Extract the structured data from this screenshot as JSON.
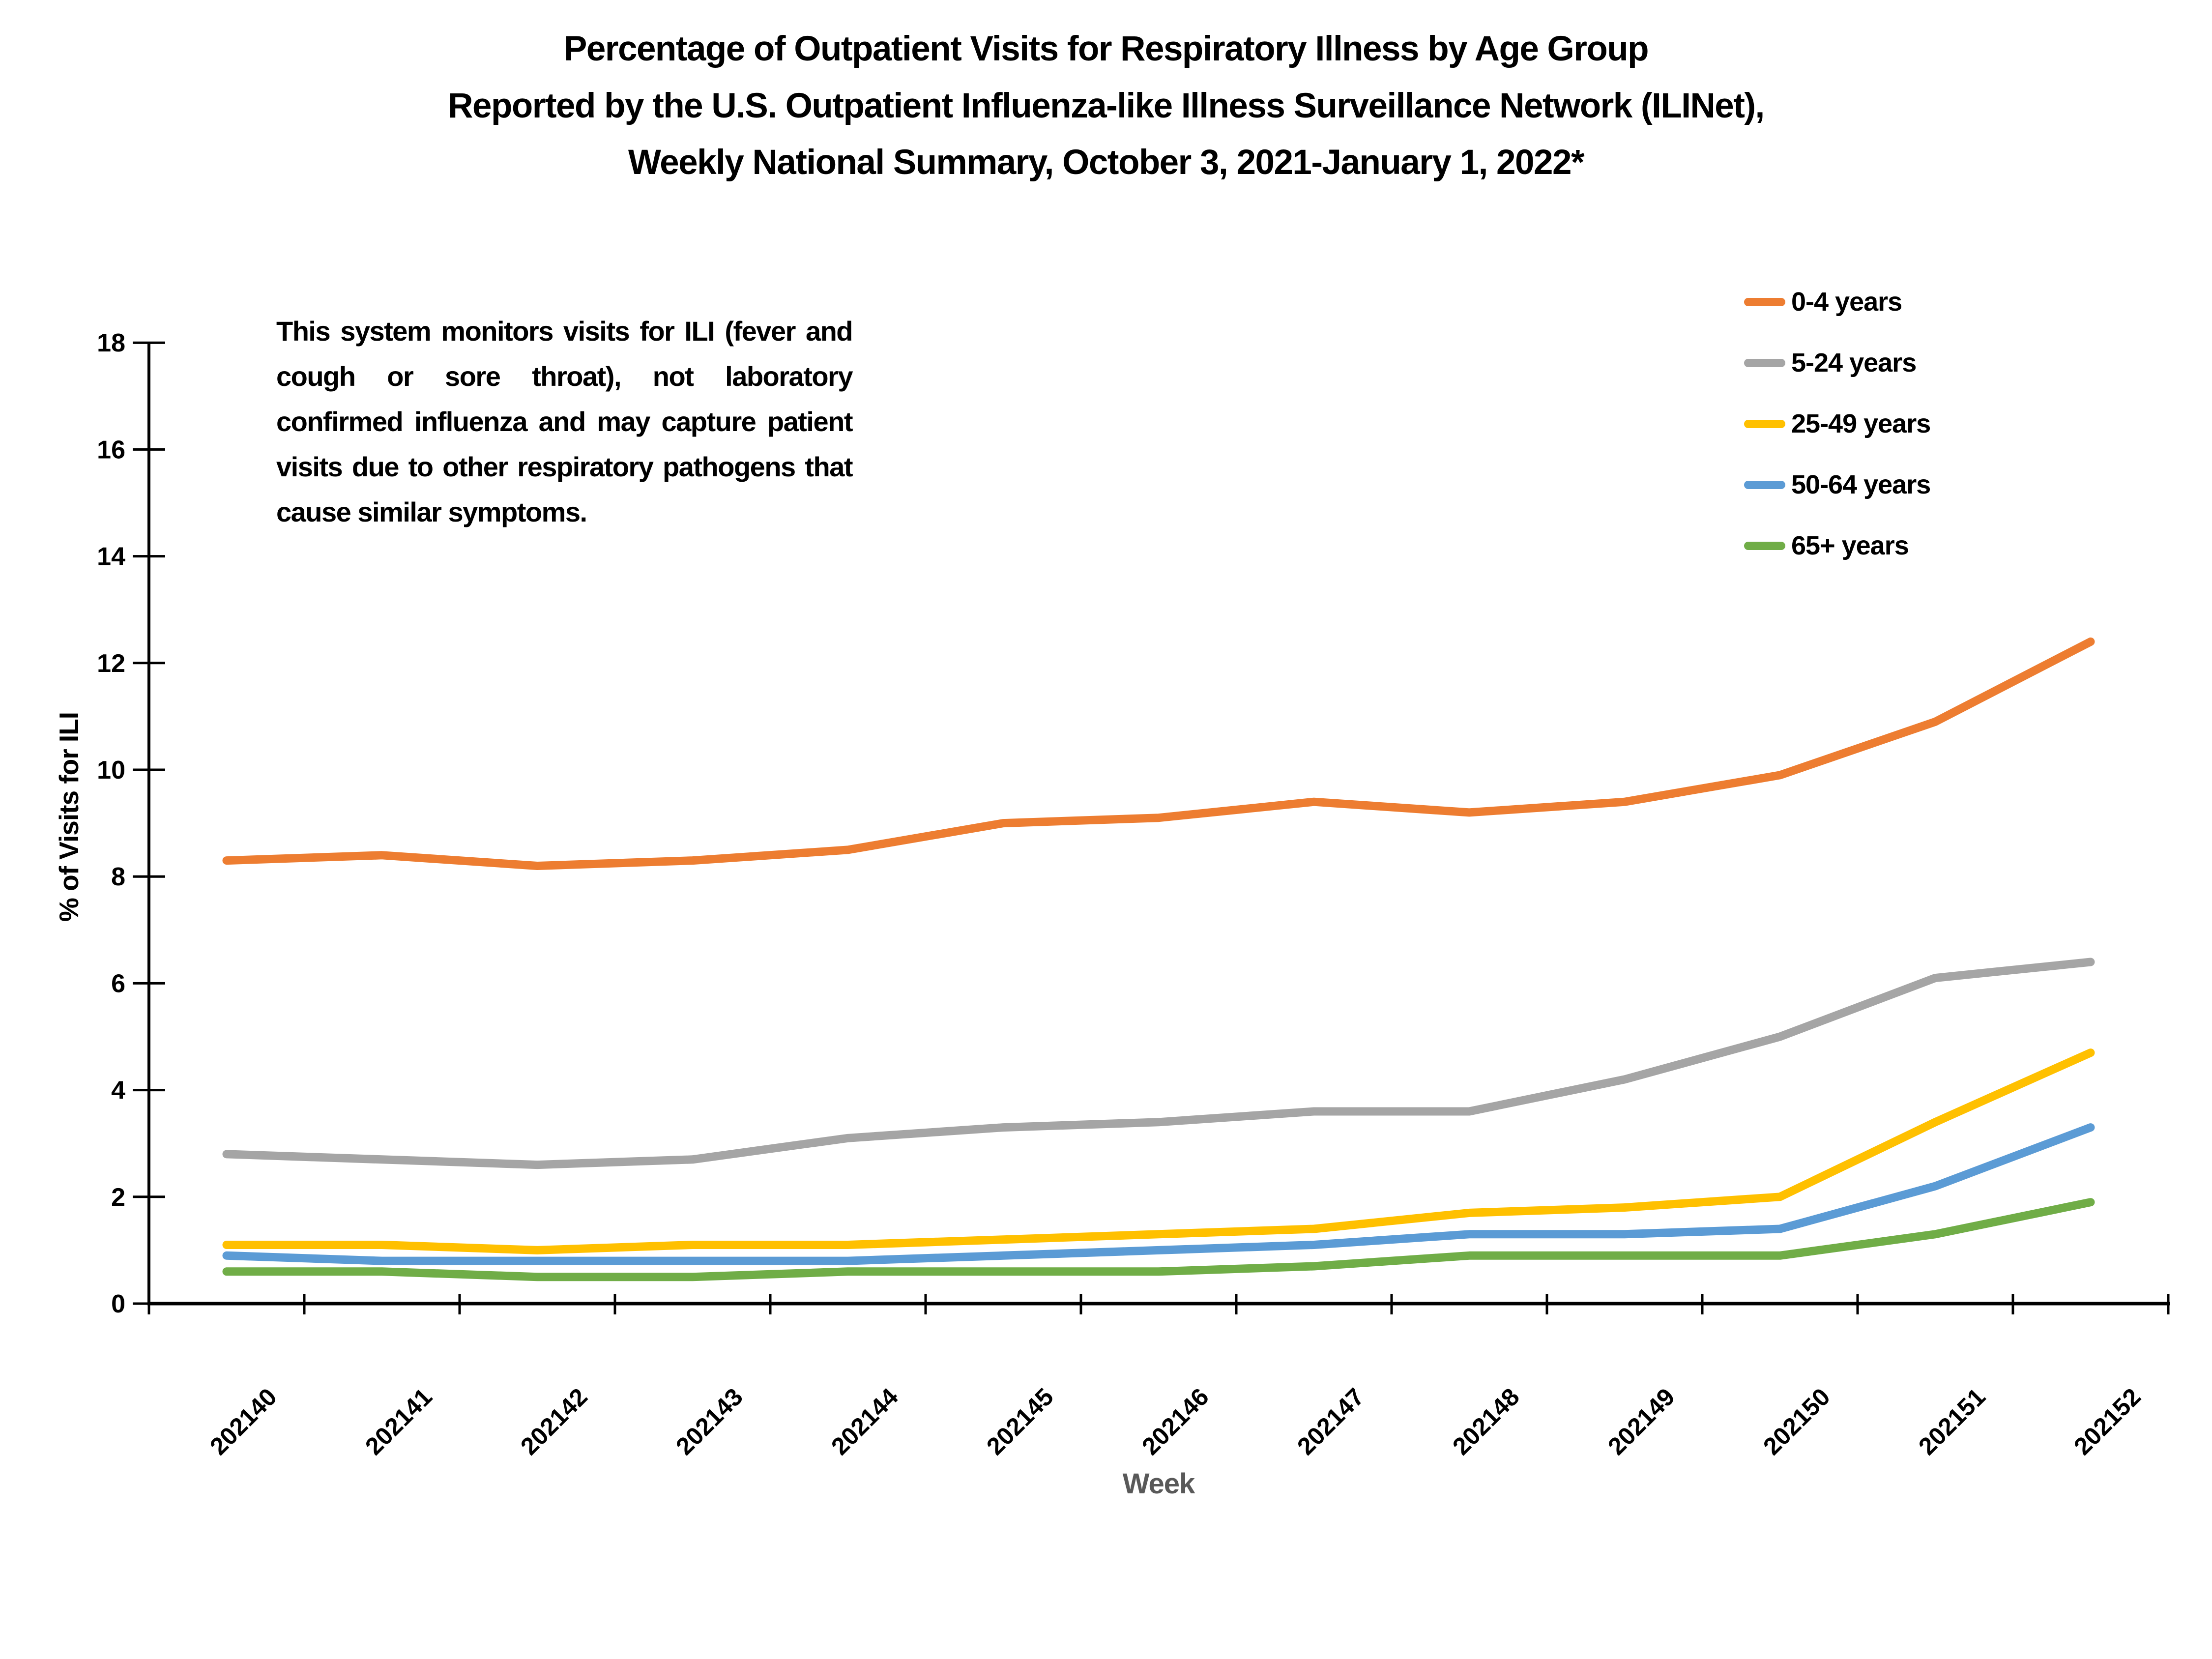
{
  "title": {
    "lines": [
      "Percentage of Outpatient Visits for Respiratory Illness by Age Group",
      "Reported by the U.S. Outpatient Influenza-like Illness Surveillance Network (ILINet),",
      "Weekly National Summary, October 3, 2021-January 1, 2022*"
    ]
  },
  "note": "This system monitors visits for ILI (fever and cough or sore throat), not laboratory confirmed influenza and may capture patient visits due to other respiratory pathogens that cause similar symptoms.",
  "chart_data": {
    "type": "line",
    "title": "Percentage of Outpatient Visits for Respiratory Illness by Age Group Reported by the U.S. Outpatient Influenza-like Illness Surveillance Network (ILINet), Weekly National Summary, October 3, 2021-January 1, 2022*",
    "xlabel": "Week",
    "ylabel": "% of Visits for ILI",
    "ylim": [
      0,
      18
    ],
    "ytick_step": 2,
    "grid": false,
    "legend_position": "top-right",
    "categories": [
      "202140",
      "202141",
      "202142",
      "202143",
      "202144",
      "202145",
      "202146",
      "202147",
      "202148",
      "202149",
      "202150",
      "202151",
      "202152"
    ],
    "series": [
      {
        "name": "0-4 years",
        "color": "#ED7D31",
        "values": [
          8.3,
          8.4,
          8.2,
          8.3,
          8.5,
          9.0,
          9.1,
          9.4,
          9.2,
          9.4,
          9.9,
          10.9,
          12.4
        ]
      },
      {
        "name": "5-24 years",
        "color": "#A5A5A5",
        "values": [
          2.8,
          2.7,
          2.6,
          2.7,
          3.1,
          3.3,
          3.4,
          3.6,
          3.6,
          4.2,
          5.0,
          6.1,
          6.4
        ]
      },
      {
        "name": "25-49 years",
        "color": "#FFC000",
        "values": [
          1.1,
          1.1,
          1.0,
          1.1,
          1.1,
          1.2,
          1.3,
          1.4,
          1.7,
          1.8,
          2.0,
          3.4,
          4.7
        ]
      },
      {
        "name": "50-64 years",
        "color": "#5B9BD5",
        "values": [
          0.9,
          0.8,
          0.8,
          0.8,
          0.8,
          0.9,
          1.0,
          1.1,
          1.3,
          1.3,
          1.4,
          2.2,
          3.3
        ]
      },
      {
        "name": "65+ years",
        "color": "#70AD47",
        "values": [
          0.6,
          0.6,
          0.5,
          0.5,
          0.6,
          0.6,
          0.6,
          0.7,
          0.9,
          0.9,
          0.9,
          1.3,
          1.9
        ]
      }
    ],
    "axis_color": "#000000",
    "xlabel_color": "#595959"
  }
}
